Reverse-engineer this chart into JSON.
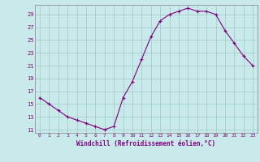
{
  "x": [
    0,
    1,
    2,
    3,
    4,
    5,
    6,
    7,
    8,
    9,
    10,
    11,
    12,
    13,
    14,
    15,
    16,
    17,
    18,
    19,
    20,
    21,
    22,
    23
  ],
  "y": [
    16,
    15,
    14,
    13,
    12.5,
    12,
    11.5,
    11,
    11.5,
    16,
    18.5,
    22,
    25.5,
    28,
    29,
    29.5,
    30,
    29.5,
    29.5,
    29,
    26.5,
    24.5,
    22.5,
    21
  ],
  "line_color": "#800080",
  "marker": "+",
  "bg_color": "#c8eaea",
  "grid_color": "#a0c8c8",
  "xlabel": "Windchill (Refroidissement éolien,°C)",
  "xlabel_color": "#800080",
  "tick_color": "#800080",
  "yticks": [
    11,
    13,
    15,
    17,
    19,
    21,
    23,
    25,
    27,
    29
  ],
  "ylim": [
    10.5,
    30.5
  ],
  "xlim": [
    -0.5,
    23.5
  ]
}
